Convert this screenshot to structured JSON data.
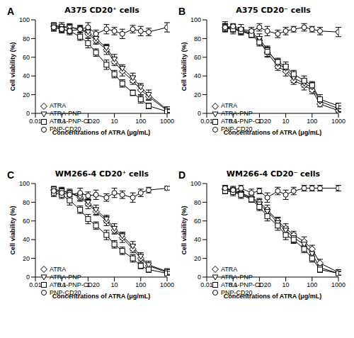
{
  "chart_data": [
    {
      "type": "line",
      "panel": "A",
      "title": "A375 CD20⁺ cells",
      "x_label": "Concentrations of ATRA (μg/mL)",
      "y_label": "Cell viability (%)",
      "log": "x",
      "legend": "lower left",
      "x": [
        0.05,
        0.1,
        0.2,
        0.5,
        1,
        2,
        5,
        10,
        20,
        50,
        100,
        200,
        1000
      ],
      "xlim": [
        0.01,
        1000
      ],
      "xticks": [
        0.01,
        0.1,
        1,
        10,
        100,
        1000
      ],
      "ylim": [
        0,
        100
      ],
      "yticks": [
        0,
        20,
        40,
        60,
        80,
        100
      ],
      "series": [
        {
          "name": "ATRA",
          "color": "#000000",
          "marker": "diamond",
          "values": [
            93,
            92,
            92,
            90,
            85,
            78,
            68,
            55,
            45,
            35,
            25,
            18,
            3
          ],
          "errors": [
            3,
            3,
            4,
            3,
            4,
            4,
            5,
            4,
            5,
            4,
            5,
            4,
            2
          ]
        },
        {
          "name": "ATRA-PNP",
          "color": "#000000",
          "marker": "triangle-down",
          "values": [
            94,
            93,
            92,
            90,
            87,
            80,
            70,
            58,
            48,
            38,
            28,
            20,
            4
          ],
          "errors": [
            3,
            4,
            3,
            4,
            3,
            5,
            4,
            5,
            4,
            5,
            4,
            5,
            3
          ]
        },
        {
          "name": "ATRA-PNP-CD20",
          "color": "#000000",
          "marker": "square",
          "values": [
            92,
            90,
            88,
            82,
            75,
            65,
            52,
            42,
            32,
            22,
            15,
            8,
            2
          ],
          "errors": [
            4,
            3,
            4,
            4,
            5,
            4,
            5,
            4,
            4,
            3,
            4,
            3,
            2
          ]
        },
        {
          "name": "PNP-CD20",
          "color": "#000000",
          "marker": "circle",
          "values": [
            92,
            90,
            88,
            90,
            92,
            85,
            90,
            88,
            85,
            90,
            88,
            87,
            92
          ],
          "errors": [
            4,
            4,
            3,
            4,
            5,
            4,
            5,
            4,
            5,
            4,
            5,
            4,
            5
          ]
        }
      ]
    },
    {
      "type": "line",
      "panel": "B",
      "title": "A375 CD20⁻ cells",
      "x_label": "Concentrations of ATRA (μg/mL)",
      "y_label": "Cell viability (%)",
      "log": "x",
      "legend": "lower left",
      "x": [
        0.05,
        0.1,
        0.2,
        0.5,
        1,
        2,
        5,
        10,
        20,
        50,
        100,
        200,
        1000
      ],
      "xlim": [
        0.01,
        1000
      ],
      "xticks": [
        0.01,
        0.1,
        1,
        10,
        100,
        1000
      ],
      "ylim": [
        0,
        100
      ],
      "yticks": [
        0,
        20,
        40,
        60,
        80,
        100
      ],
      "series": [
        {
          "name": "ATRA",
          "color": "#000000",
          "marker": "diamond",
          "values": [
            92,
            90,
            88,
            85,
            78,
            65,
            50,
            45,
            35,
            30,
            25,
            10,
            3
          ],
          "errors": [
            4,
            3,
            4,
            3,
            4,
            5,
            4,
            5,
            4,
            5,
            4,
            3,
            2
          ]
        },
        {
          "name": "ATRA-PNP",
          "color": "#000000",
          "marker": "triangle-down",
          "values": [
            93,
            91,
            89,
            86,
            80,
            68,
            53,
            48,
            38,
            32,
            28,
            13,
            5
          ],
          "errors": [
            5,
            4,
            3,
            4,
            5,
            4,
            5,
            4,
            5,
            4,
            5,
            4,
            3
          ]
        },
        {
          "name": "ATRA-PNP-CD20",
          "color": "#000000",
          "marker": "square",
          "values": [
            91,
            90,
            88,
            84,
            76,
            66,
            55,
            50,
            42,
            35,
            30,
            15,
            8
          ],
          "errors": [
            4,
            5,
            4,
            3,
            4,
            5,
            4,
            5,
            4,
            5,
            4,
            5,
            3
          ]
        },
        {
          "name": "PNP-CD20",
          "color": "#000000",
          "marker": "circle",
          "values": [
            92,
            93,
            90,
            88,
            92,
            88,
            85,
            88,
            90,
            92,
            90,
            88,
            87
          ],
          "errors": [
            4,
            3,
            5,
            4,
            4,
            5,
            4,
            4,
            3,
            4,
            3,
            4,
            5
          ]
        }
      ]
    },
    {
      "type": "line",
      "panel": "C",
      "title": "WM266-4 CD20⁺ cells",
      "x_label": "Concentrations of ATRA (μg/mL)",
      "y_label": "Cell viability (%)",
      "log": "x",
      "legend": "lower left",
      "x": [
        0.05,
        0.1,
        0.2,
        0.5,
        1,
        2,
        5,
        10,
        20,
        50,
        100,
        200,
        1000
      ],
      "xlim": [
        0.01,
        1000
      ],
      "xticks": [
        0.01,
        0.1,
        1,
        10,
        100,
        1000
      ],
      "ylim": [
        0,
        100
      ],
      "yticks": [
        0,
        20,
        40,
        60,
        80,
        100
      ],
      "series": [
        {
          "name": "ATRA",
          "color": "#000000",
          "marker": "diamond",
          "values": [
            93,
            92,
            90,
            85,
            78,
            70,
            60,
            50,
            42,
            30,
            20,
            12,
            5
          ],
          "errors": [
            3,
            4,
            3,
            4,
            5,
            4,
            5,
            4,
            5,
            4,
            4,
            3,
            3
          ]
        },
        {
          "name": "ATRA-PNP",
          "color": "#000000",
          "marker": "triangle-down",
          "values": [
            94,
            92,
            90,
            86,
            80,
            72,
            62,
            52,
            44,
            33,
            22,
            13,
            6
          ],
          "errors": [
            3,
            3,
            4,
            4,
            4,
            5,
            4,
            5,
            4,
            5,
            4,
            4,
            3
          ]
        },
        {
          "name": "ATRA-PNP-CD20",
          "color": "#000000",
          "marker": "square",
          "values": [
            90,
            88,
            82,
            72,
            62,
            55,
            45,
            35,
            28,
            20,
            12,
            8,
            4
          ],
          "errors": [
            4,
            4,
            5,
            4,
            5,
            4,
            5,
            4,
            4,
            4,
            3,
            3,
            2
          ]
        },
        {
          "name": "PNP-CD20",
          "color": "#000000",
          "marker": "circle",
          "values": [
            92,
            90,
            88,
            90,
            87,
            88,
            85,
            90,
            88,
            85,
            90,
            93,
            95
          ],
          "errors": [
            4,
            3,
            4,
            5,
            4,
            5,
            4,
            5,
            4,
            5,
            4,
            3,
            2
          ]
        }
      ]
    },
    {
      "type": "line",
      "panel": "D",
      "title": "WM266-4 CD20⁻ cells",
      "x_label": "Concentrations of ATRA (μg/mL)",
      "y_label": "Cell viability (%)",
      "log": "x",
      "legend": "lower left",
      "x": [
        0.05,
        0.1,
        0.2,
        0.5,
        1,
        2,
        5,
        10,
        20,
        50,
        100,
        200,
        1000
      ],
      "xlim": [
        0.01,
        1000
      ],
      "xticks": [
        0.01,
        0.1,
        1,
        10,
        100,
        1000
      ],
      "ylim": [
        0,
        100
      ],
      "yticks": [
        0,
        20,
        40,
        60,
        80,
        100
      ],
      "series": [
        {
          "name": "ATRA",
          "color": "#000000",
          "marker": "diamond",
          "values": [
            94,
            93,
            90,
            85,
            80,
            72,
            60,
            52,
            45,
            38,
            30,
            15,
            5
          ],
          "errors": [
            3,
            3,
            4,
            4,
            4,
            5,
            4,
            5,
            4,
            5,
            4,
            4,
            3
          ]
        },
        {
          "name": "ATRA-PNP",
          "color": "#000000",
          "marker": "triangle-down",
          "values": [
            93,
            92,
            89,
            84,
            78,
            70,
            58,
            50,
            42,
            35,
            25,
            10,
            4
          ],
          "errors": [
            4,
            3,
            3,
            4,
            5,
            4,
            5,
            4,
            5,
            4,
            5,
            3,
            2
          ]
        },
        {
          "name": "ATRA-PNP-CD20",
          "color": "#000000",
          "marker": "square",
          "values": [
            92,
            91,
            88,
            83,
            75,
            65,
            55,
            45,
            40,
            30,
            20,
            8,
            4
          ],
          "errors": [
            3,
            4,
            4,
            3,
            4,
            5,
            5,
            5,
            4,
            4,
            4,
            3,
            2
          ]
        },
        {
          "name": "PNP-CD20",
          "color": "#000000",
          "marker": "circle",
          "values": [
            95,
            93,
            95,
            90,
            92,
            85,
            92,
            88,
            92,
            95,
            95,
            95,
            95
          ],
          "errors": [
            3,
            4,
            3,
            4,
            3,
            5,
            4,
            5,
            4,
            3,
            3,
            3,
            3
          ]
        }
      ]
    }
  ]
}
